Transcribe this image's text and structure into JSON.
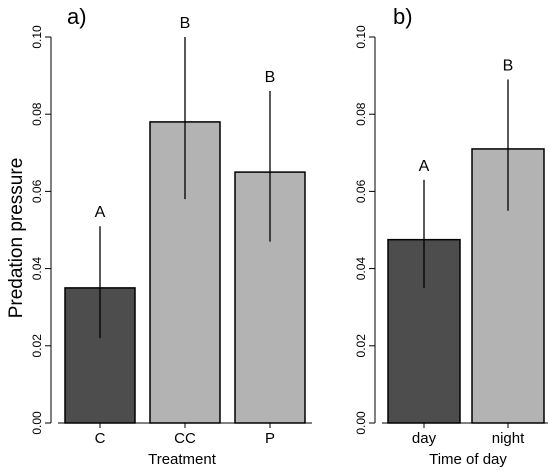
{
  "ylabel": "Predation pressure",
  "chart_data": [
    {
      "type": "bar",
      "panel_label": "a)",
      "xlabel": "Treatment",
      "ylabel": "Predation pressure",
      "ylim": [
        0,
        0.1
      ],
      "yticks": [
        "0.00",
        "0.02",
        "0.04",
        "0.06",
        "0.08",
        "0.10"
      ],
      "categories": [
        "C",
        "CC",
        "P"
      ],
      "values": [
        0.035,
        0.078,
        0.065
      ],
      "error_low": [
        0.022,
        0.058,
        0.047
      ],
      "error_high": [
        0.051,
        0.1,
        0.086
      ],
      "letters": [
        "A",
        "B",
        "B"
      ],
      "colors": [
        "#4d4d4d",
        "#b3b3b3",
        "#b3b3b3"
      ]
    },
    {
      "type": "bar",
      "panel_label": "b)",
      "xlabel": "Time of day",
      "ylim": [
        0,
        0.1
      ],
      "yticks": [
        "0.00",
        "0.02",
        "0.04",
        "0.06",
        "0.08",
        "0.10"
      ],
      "categories": [
        "day",
        "night"
      ],
      "values": [
        0.0475,
        0.071
      ],
      "error_low": [
        0.035,
        0.055
      ],
      "error_high": [
        0.063,
        0.089
      ],
      "letters": [
        "A",
        "B"
      ],
      "colors": [
        "#4d4d4d",
        "#b3b3b3"
      ]
    }
  ]
}
